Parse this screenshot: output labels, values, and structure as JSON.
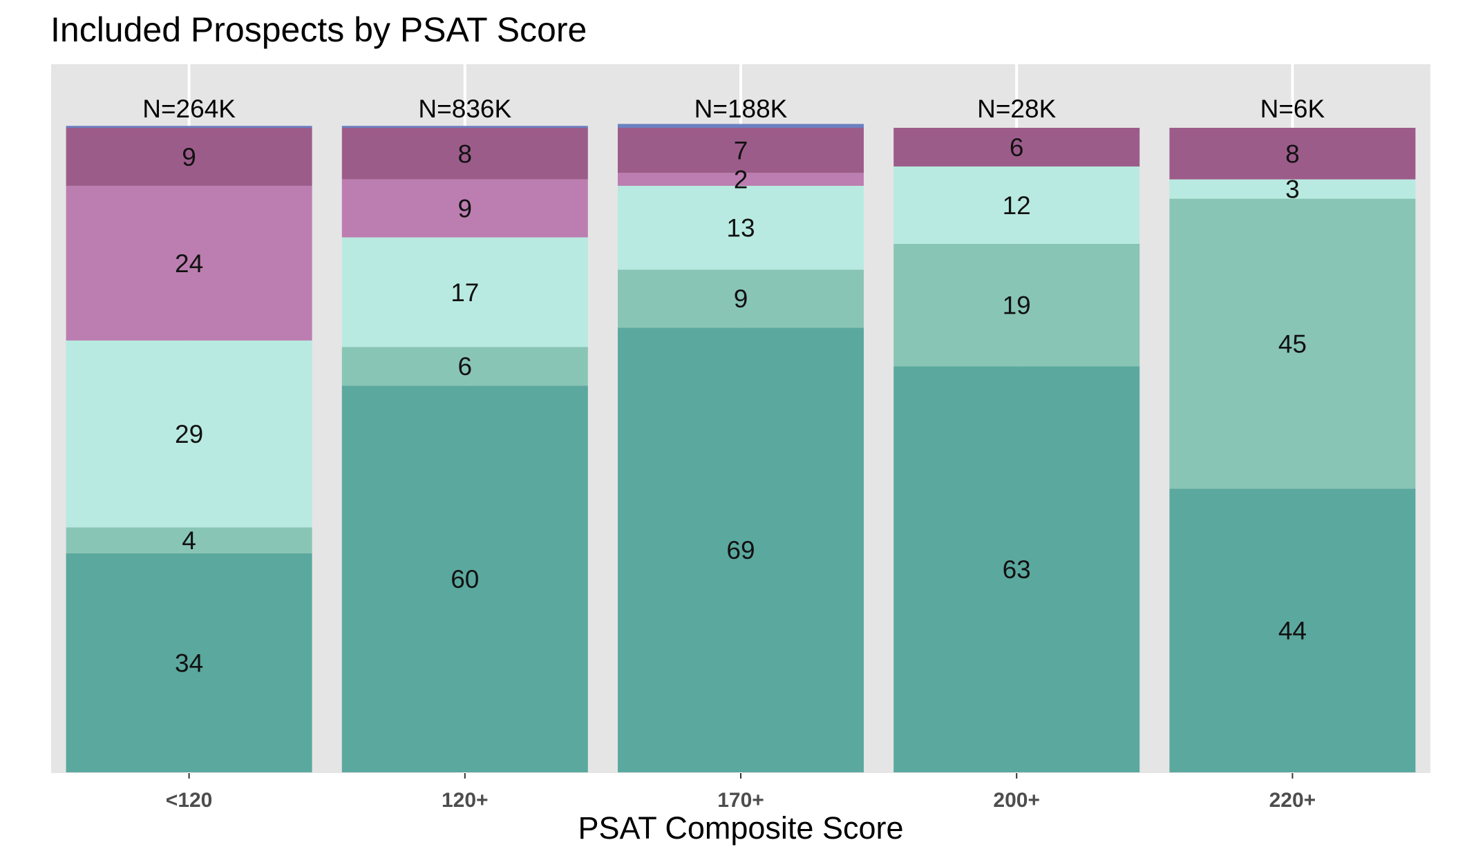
{
  "title": "Included Prospects by PSAT Score",
  "chart_data": {
    "type": "bar",
    "title": "Included Prospects by PSAT Score",
    "xlabel": "PSAT Composite Score",
    "ylabel": "",
    "categories": [
      "<120",
      "120+",
      "170+",
      "200+",
      "220+"
    ],
    "totals": [
      "N=264K",
      "N=836K",
      "N=188K",
      "N=28K",
      "N=6K"
    ],
    "ylim": [
      0,
      100
    ],
    "grid": true,
    "legend": "none",
    "series": [
      {
        "color": "#5ba89e",
        "values": [
          34,
          60,
          69,
          63,
          44
        ],
        "labels": [
          "34",
          "60",
          "69",
          "63",
          "44"
        ]
      },
      {
        "color": "#88c5b5",
        "values": [
          4,
          6,
          9,
          19,
          45
        ],
        "labels": [
          "4",
          "6",
          "9",
          "19",
          "45"
        ]
      },
      {
        "color": "#b8eae1",
        "values": [
          29,
          17,
          13,
          12,
          3
        ],
        "labels": [
          "29",
          "17",
          "13",
          "12",
          "3"
        ]
      },
      {
        "color": "#bc7eb0",
        "values": [
          24,
          9,
          2,
          0,
          0
        ],
        "labels": [
          "24",
          "9",
          "2",
          "",
          ""
        ]
      },
      {
        "color": "#9c5c8a",
        "values": [
          9,
          8,
          7,
          6,
          8
        ],
        "labels": [
          "9",
          "8",
          "7",
          "6",
          "8"
        ]
      },
      {
        "color": "#6b80c0",
        "values": [
          0.3,
          0.3,
          0.6,
          0,
          0
        ],
        "labels": [
          "",
          "",
          "",
          "",
          ""
        ]
      }
    ]
  }
}
